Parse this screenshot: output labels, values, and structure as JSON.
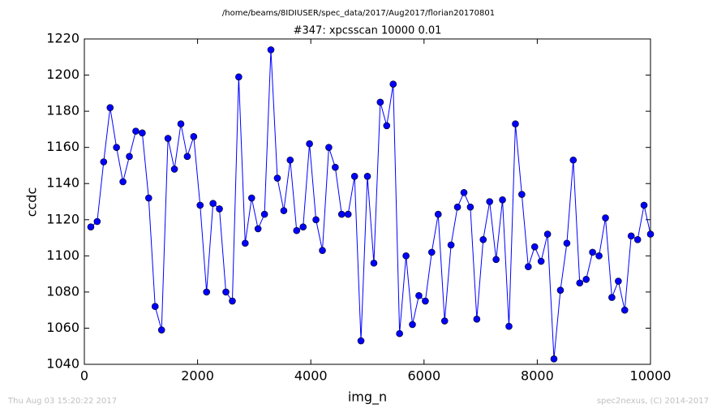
{
  "chart_data": {
    "type": "line",
    "suptitle": "/home/beams/8IDIUSER/spec_data/2017/Aug2017/florian20170801",
    "title": "#347: xpcsscan 10000 0.01",
    "xlabel": "img_n",
    "ylabel": "ccdc",
    "footer_left": "Thu Aug 03 15:20:22 2017",
    "footer_right": "spec2nexus, (C) 2014-2017",
    "xlim": [
      0,
      10000
    ],
    "xticks": [
      0,
      2000,
      4000,
      6000,
      8000,
      10000
    ],
    "ylim": [
      1040,
      1220
    ],
    "yticks": [
      1040,
      1060,
      1080,
      1100,
      1120,
      1140,
      1160,
      1180,
      1200,
      1220
    ],
    "x": [
      114,
      227,
      341,
      455,
      568,
      682,
      795,
      909,
      1023,
      1136,
      1250,
      1364,
      1477,
      1591,
      1705,
      1818,
      1932,
      2045,
      2159,
      2273,
      2386,
      2500,
      2614,
      2727,
      2841,
      2955,
      3068,
      3182,
      3295,
      3409,
      3523,
      3636,
      3750,
      3864,
      3977,
      4091,
      4205,
      4318,
      4432,
      4545,
      4659,
      4773,
      4886,
      5000,
      5114,
      5227,
      5341,
      5455,
      5568,
      5682,
      5795,
      5909,
      6023,
      6136,
      6250,
      6364,
      6477,
      6591,
      6705,
      6818,
      6932,
      7045,
      7159,
      7273,
      7386,
      7500,
      7614,
      7727,
      7841,
      7955,
      8068,
      8182,
      8295,
      8409,
      8523,
      8636,
      8750,
      8864,
      8977,
      9091,
      9205,
      9318,
      9432,
      9545,
      9659,
      9773,
      9886,
      10000
    ],
    "series": [
      {
        "color": "#0000ff",
        "values": [
          1116,
          1119,
          1152,
          1182,
          1160,
          1141,
          1155,
          1169,
          1168,
          1132,
          1072,
          1059,
          1165,
          1148,
          1173,
          1155,
          1166,
          1128,
          1080,
          1129,
          1126,
          1080,
          1075,
          1199,
          1107,
          1132,
          1115,
          1123,
          1214,
          1143,
          1125,
          1153,
          1114,
          1116,
          1162,
          1120,
          1103,
          1160,
          1149,
          1123,
          1123,
          1144,
          1053,
          1144,
          1096,
          1185,
          1172,
          1195,
          1057,
          1100,
          1062,
          1078,
          1075,
          1102,
          1123,
          1064,
          1106,
          1127,
          1135,
          1127,
          1065,
          1109,
          1130,
          1098,
          1131,
          1061,
          1173,
          1134,
          1094,
          1105,
          1097,
          1112,
          1043,
          1081,
          1107,
          1153,
          1085,
          1087,
          1102,
          1100,
          1121,
          1077,
          1086,
          1070,
          1111,
          1109,
          1128,
          1112
        ]
      }
    ]
  }
}
